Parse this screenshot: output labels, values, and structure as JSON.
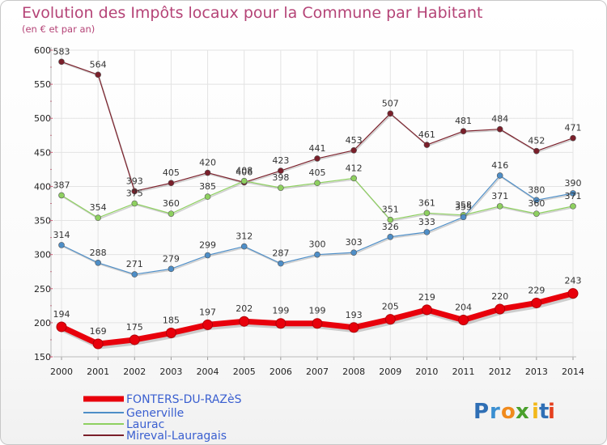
{
  "chart_data": {
    "type": "line",
    "title": "Evolution des Impôts locaux pour la Commune par Habitant",
    "subtitle": "(en € et par an)",
    "x": [
      "2000",
      "2001",
      "2002",
      "2003",
      "2004",
      "2005",
      "2006",
      "2007",
      "2008",
      "2009",
      "2010",
      "2011",
      "2012",
      "2013",
      "2014"
    ],
    "yticks": [
      150,
      200,
      250,
      300,
      350,
      400,
      450,
      500,
      550,
      600
    ],
    "ylim": [
      150,
      600
    ],
    "grid": true,
    "legend_position": "bottom-left",
    "series": [
      {
        "name": "FONTERS-DU-RAZèS",
        "color": "#e8000b",
        "values": [
          194,
          169,
          175,
          185,
          197,
          202,
          199,
          199,
          193,
          205,
          219,
          204,
          220,
          229,
          243
        ]
      },
      {
        "name": "Generville",
        "color": "#4e8ec7",
        "values": [
          314,
          288,
          271,
          279,
          299,
          312,
          287,
          300,
          303,
          326,
          333,
          355,
          416,
          380,
          390
        ]
      },
      {
        "name": "Laurac",
        "color": "#8ed060",
        "values": [
          387,
          354,
          375,
          360,
          385,
          408,
          398,
          405,
          412,
          351,
          361,
          358,
          371,
          360,
          371
        ]
      },
      {
        "name": "Mireval-Lauragais",
        "color": "#7a1f2a",
        "values": [
          583,
          564,
          393,
          405,
          420,
          406,
          423,
          441,
          453,
          507,
          461,
          481,
          484,
          452,
          471
        ]
      }
    ]
  },
  "logo": {
    "text": "Proxiti",
    "letters": [
      "P",
      "r",
      "o",
      "x",
      "i",
      "t",
      "i"
    ],
    "colors": [
      "#2f6fb5",
      "#3a8fd1",
      "#f08a1c",
      "#4aa02c",
      "#f2b81a",
      "#2f6fb5",
      "#e5401f"
    ]
  }
}
